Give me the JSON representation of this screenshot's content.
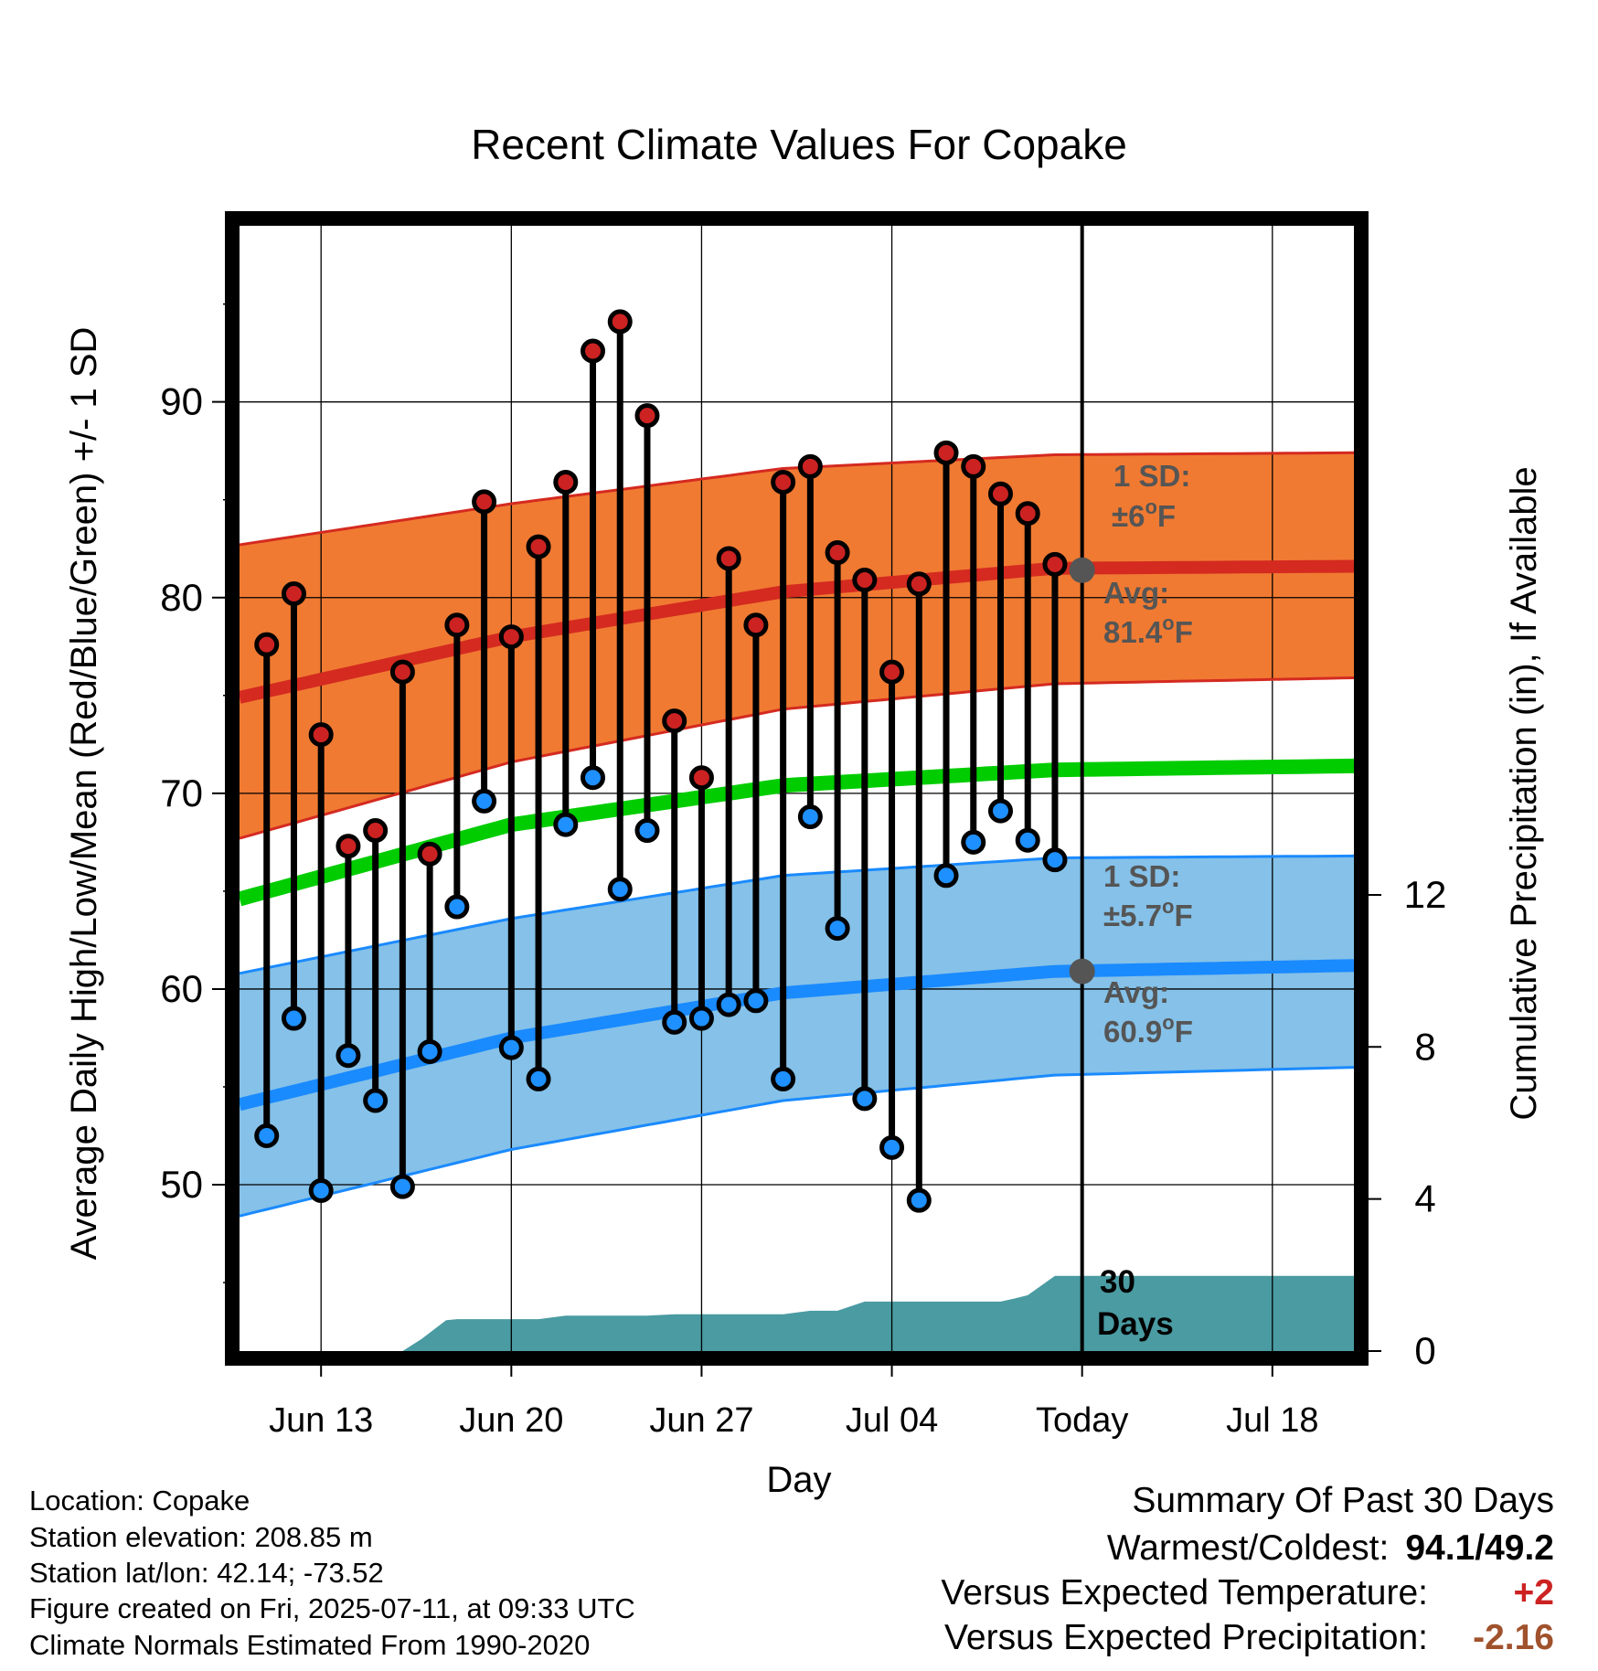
{
  "chart_data": {
    "type": "dumbbell",
    "title": "Recent Climate Values For Copake",
    "xlabel": "Day",
    "ylabel_left": "Average Daily High/Low/Mean (Red/Blue/Green) +/- 1 SD",
    "ylabel_right": "Cumulative Precipitation (in), If Available",
    "x_range_day": [
      0,
      41
    ],
    "x_ticks": [
      {
        "day": 3,
        "label": "Jun 13"
      },
      {
        "day": 10,
        "label": "Jun 20"
      },
      {
        "day": 17,
        "label": "Jun 27"
      },
      {
        "day": 24,
        "label": "Jul 04"
      },
      {
        "day": 31,
        "label": "Today"
      },
      {
        "day": 38,
        "label": "Jul 18"
      }
    ],
    "y_left_range": [
      41.5,
      99
    ],
    "y_left_ticks": [
      50,
      60,
      70,
      80,
      90
    ],
    "y_right_range": [
      0,
      29.6
    ],
    "y_right_ticks": [
      0,
      4,
      8,
      12
    ],
    "today_day": 31,
    "days": [
      1,
      2,
      3,
      4,
      5,
      6,
      7,
      8,
      9,
      10,
      11,
      12,
      13,
      14,
      15,
      16,
      17,
      18,
      19,
      20,
      21,
      22,
      23,
      24,
      25,
      26,
      27,
      28,
      29,
      30
    ],
    "highs": [
      77.6,
      80.2,
      73.0,
      67.3,
      68.1,
      76.2,
      66.9,
      78.6,
      84.9,
      78.0,
      82.6,
      85.9,
      92.6,
      94.1,
      89.3,
      73.7,
      70.8,
      82.0,
      78.6,
      85.9,
      86.7,
      82.3,
      80.9,
      76.2,
      80.7,
      87.4,
      86.7,
      85.3,
      84.3,
      81.7
    ],
    "lows": [
      52.5,
      58.5,
      49.7,
      56.6,
      54.3,
      49.9,
      56.8,
      64.2,
      69.6,
      57.0,
      55.4,
      68.4,
      70.8,
      65.1,
      68.1,
      58.3,
      58.5,
      59.2,
      59.4,
      55.4,
      68.8,
      63.1,
      54.4,
      51.9,
      49.2,
      65.8,
      67.5,
      69.1,
      67.6,
      66.6
    ],
    "normal_high_avg": {
      "day": [
        0,
        10,
        20,
        30,
        41
      ],
      "values": [
        74.9,
        78.0,
        80.3,
        81.5,
        81.6
      ]
    },
    "normal_high_upper": {
      "day": [
        0,
        10,
        20,
        30,
        41
      ],
      "values": [
        82.7,
        84.8,
        86.6,
        87.3,
        87.4
      ]
    },
    "normal_high_lower": {
      "day": [
        0,
        10,
        20,
        30,
        41
      ],
      "values": [
        67.7,
        71.6,
        74.3,
        75.6,
        75.9
      ]
    },
    "normal_mean": {
      "day": [
        0,
        10,
        20,
        30,
        41
      ],
      "values": [
        64.6,
        68.4,
        70.4,
        71.2,
        71.4
      ]
    },
    "normal_low_avg": {
      "day": [
        0,
        10,
        20,
        30,
        41
      ],
      "values": [
        54.1,
        57.5,
        59.8,
        60.9,
        61.2
      ]
    },
    "normal_low_upper": {
      "day": [
        0,
        10,
        20,
        30,
        41
      ],
      "values": [
        60.8,
        63.6,
        65.8,
        66.7,
        66.8
      ]
    },
    "normal_low_lower": {
      "day": [
        0,
        10,
        20,
        30,
        41
      ],
      "values": [
        48.4,
        51.8,
        54.3,
        55.6,
        56.0
      ]
    },
    "precip_cumulative": {
      "day": [
        6,
        6.7,
        7.6,
        8,
        9,
        10,
        11,
        12,
        13,
        14,
        15,
        16,
        17,
        18,
        19,
        20,
        21,
        22,
        23,
        24,
        25,
        26,
        27,
        28,
        28.5,
        29,
        30,
        31,
        32,
        41
      ],
      "values": [
        0,
        0.32,
        0.81,
        0.84,
        0.84,
        0.84,
        0.84,
        0.93,
        0.93,
        0.93,
        0.93,
        0.97,
        0.97,
        0.97,
        0.97,
        0.97,
        1.06,
        1.06,
        1.3,
        1.3,
        1.3,
        1.3,
        1.3,
        1.3,
        1.38,
        1.47,
        1.98,
        1.98,
        1.98,
        1.98
      ]
    },
    "annotations": {
      "high_sd_label": "1 SD:",
      "high_sd_value": "±6",
      "high_sd_unit": "F",
      "high_avg_label": "Avg:",
      "high_avg_value": "81.4",
      "high_avg_unit": "F",
      "low_sd_label": "1 SD:",
      "low_sd_value": "±5.7",
      "low_sd_unit": "F",
      "low_avg_label": "Avg:",
      "low_avg_value": "60.9",
      "low_avg_unit": "F",
      "degree_symbol": "o",
      "days_label_1": "30",
      "days_label_2": "Days"
    },
    "colors": {
      "high_band": "#f07a32",
      "high_band_edge": "#d42a20",
      "high_avg_line": "#d42a20",
      "low_band": "#85c1e8",
      "low_band_edge": "#1a8aff",
      "low_avg_line": "#1a8aff",
      "mean_line": "#00cc00",
      "precip_fill": "#4a9ba2",
      "high_marker": "#cc2222",
      "low_marker": "#1e90ff",
      "annotation_text": "#555555",
      "precip_text": "#000000"
    }
  },
  "info": {
    "location": "Location: Copake",
    "elevation": "Station elevation: 208.85 m",
    "latlon": "Station lat/lon: 42.14; -73.52",
    "created": "Figure created on Fri, 2025-07-11, at 09:33 UTC",
    "normals": "Climate Normals Estimated From 1990-2020"
  },
  "summary": {
    "title": "Summary Of Past 30 Days",
    "warmest_label": "Warmest/Coldest:",
    "warmest_value": "94.1/49.2",
    "temp_label": "Versus Expected Temperature:",
    "temp_value": "+2",
    "temp_color": "#cc2222",
    "precip_label": "Versus Expected Precipitation:",
    "precip_value": "-2.16",
    "precip_color": "#a0522d"
  }
}
